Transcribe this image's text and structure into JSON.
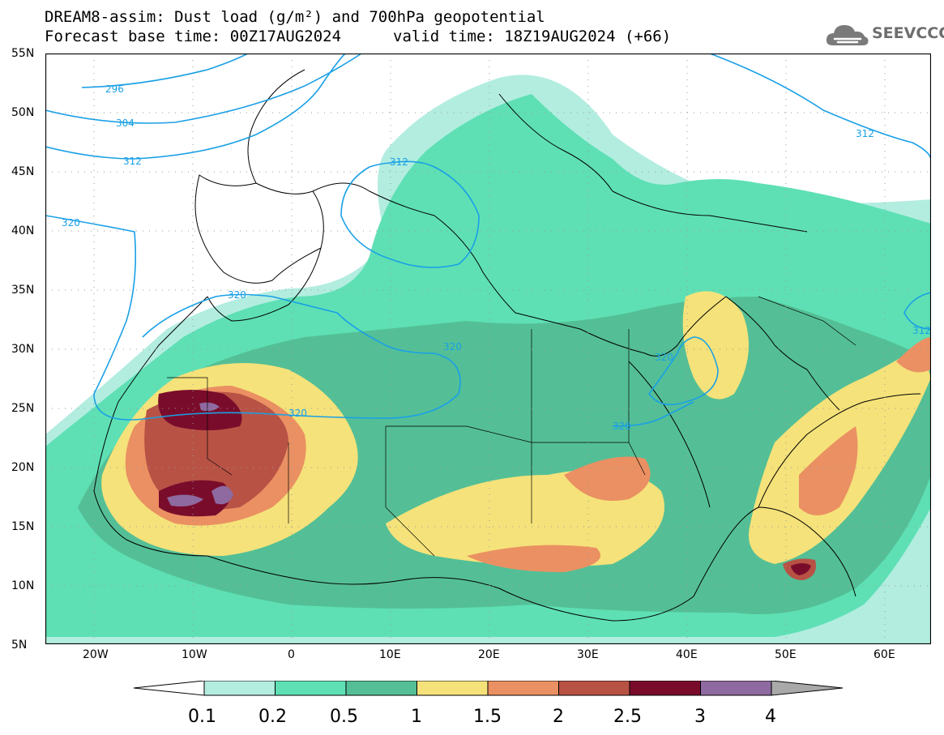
{
  "title": {
    "line1": "DREAM8-assim: Dust load (g/m²) and 700hPa geopotential",
    "base_time": "Forecast base time: 00Z17AUG2024",
    "valid_time": "valid time: 18Z19AUG2024 (+66)"
  },
  "logo": {
    "text": "SEEVCCC",
    "icon": "cloud-icon",
    "color": "#6e6e6e"
  },
  "lat_labels": [
    "55N",
    "50N",
    "45N",
    "40N",
    "35N",
    "30N",
    "25N",
    "20N",
    "15N",
    "10N",
    "5N"
  ],
  "lon_labels": [
    "20W",
    "10W",
    "0",
    "10E",
    "20E",
    "30E",
    "40E",
    "50E",
    "60E"
  ],
  "contour_labels": [
    "296",
    "304",
    "312",
    "320",
    "312",
    "312",
    "320",
    "320",
    "320",
    "320",
    "320",
    "312"
  ],
  "colorbar": {
    "labels": [
      "0.1",
      "0.2",
      "0.5",
      "1",
      "1.5",
      "2",
      "2.5",
      "3",
      "4"
    ],
    "colors": [
      "#b2ede0",
      "#5ee0b4",
      "#54bf96",
      "#f5e27a",
      "#ea9062",
      "#b85245",
      "#7a0c2b",
      "#8e6aa0"
    ]
  },
  "contour_color": "#1aa0e6"
}
